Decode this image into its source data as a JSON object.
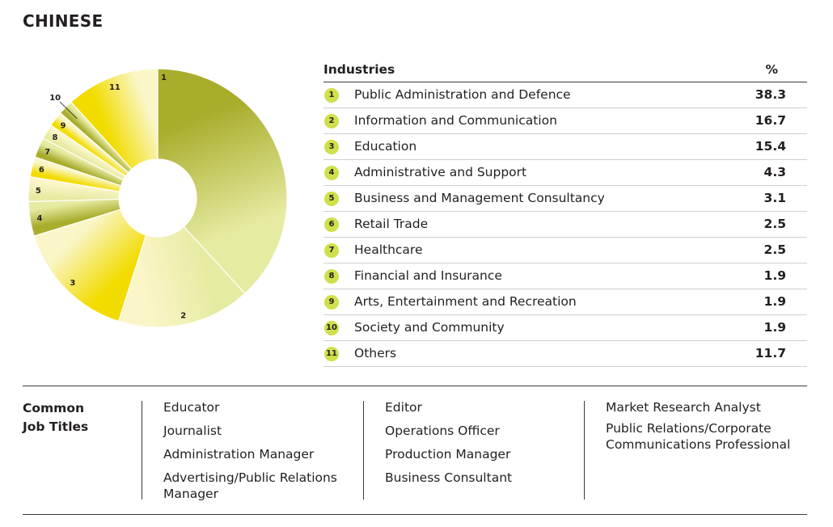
{
  "header": {
    "title": "CHINESE"
  },
  "table": {
    "col_industries": "Industries",
    "col_percent": "%"
  },
  "colors": {
    "olive_dark": "#a9ad2c",
    "olive_light": "#e6eba2",
    "yellow": "#f2dc00",
    "pale": "#faf6c8",
    "badge": "#cfe04a"
  },
  "chart_data": {
    "type": "pie",
    "style": "donut",
    "categories": [
      "Public Administration and Defence",
      "Information and Communication",
      "Education",
      "Administrative and Support",
      "Business and Management Consultancy",
      "Retail Trade",
      "Healthcare",
      "Financial and Insurance",
      "Arts, Entertainment and Recreation",
      "Society and Community",
      "Others"
    ],
    "numbers": [
      "1",
      "2",
      "3",
      "4",
      "5",
      "6",
      "7",
      "8",
      "9",
      "10",
      "11"
    ],
    "values": [
      38.3,
      16.7,
      15.4,
      4.3,
      3.1,
      2.5,
      2.5,
      1.9,
      1.9,
      1.9,
      11.7
    ],
    "value_labels": [
      "38.3",
      "16.7",
      "15.4",
      "4.3",
      "3.1",
      "2.5",
      "2.5",
      "1.9",
      "1.9",
      "1.9",
      "11.7"
    ],
    "title": "CHINESE",
    "legend": "table-right"
  },
  "job_titles": {
    "label_line1": "Common",
    "label_line2": "Job Titles",
    "columns": [
      [
        "Educator",
        "Journalist",
        "Administration Manager",
        "Advertising/Public Relations Manager"
      ],
      [
        "Editor",
        "Operations Officer",
        "Production Manager",
        "Business Consultant"
      ],
      [
        "Market Research Analyst",
        "Public Relations/Corporate Communications Professional"
      ]
    ]
  }
}
